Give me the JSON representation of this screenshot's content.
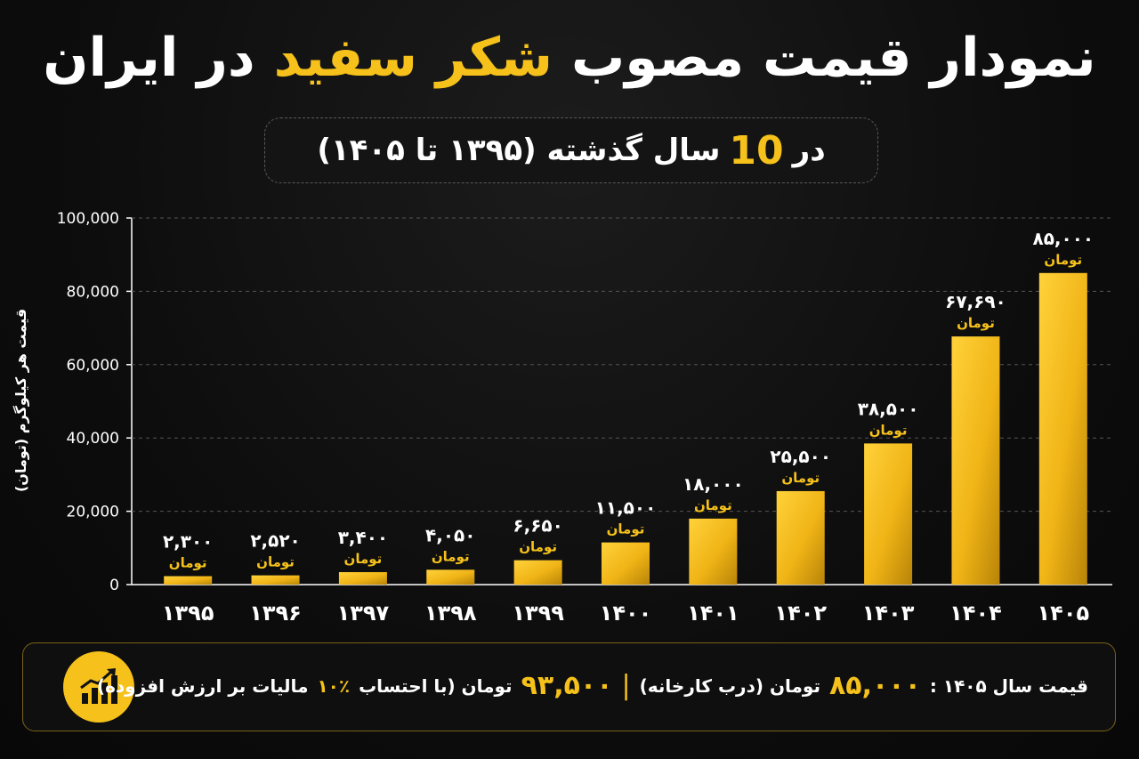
{
  "title": {
    "part1": "نمودار قیمت مصوب",
    "highlight": "شکر سفید",
    "part2": "در ایران"
  },
  "subtitle": {
    "prefix": "در",
    "number": "10",
    "suffix": "سال گذشته (۱۳۹۵ تا ۱۴۰۵)"
  },
  "chart_data": {
    "type": "bar",
    "ylabel": "قیمت هر کیلوگرم (تومان)",
    "ylim": [
      0,
      100000
    ],
    "yticks": [
      "0",
      "20,000",
      "40,000",
      "60,000",
      "80,000",
      "100,000"
    ],
    "grid": true,
    "categories": [
      "۱۳۹۵",
      "۱۳۹۶",
      "۱۳۹۷",
      "۱۳۹۸",
      "۱۳۹۹",
      "۱۴۰۰",
      "۱۴۰۱",
      "۱۴۰۲",
      "۱۴۰۳",
      "۱۴۰۴",
      "۱۴۰۵"
    ],
    "values": [
      2300,
      2520,
      3400,
      4050,
      6650,
      11500,
      18000,
      25500,
      38500,
      67690,
      85000
    ],
    "value_labels": [
      "۲,۳۰۰",
      "۲,۵۲۰",
      "۳,۴۰۰",
      "۴,۰۵۰",
      "۶,۶۵۰",
      "۱۱,۵۰۰",
      "۱۸,۰۰۰",
      "۲۵,۵۰۰",
      "۳۸,۵۰۰",
      "۶۷,۶۹۰",
      "۸۵,۰۰۰"
    ],
    "unit_label": "تومان",
    "bar_color": "#f5c11a"
  },
  "footer": {
    "icon": "growth-chart-icon",
    "year_label": "قیمت سال ۱۴۰۵ :",
    "factory_price": "۸۵,۰۰۰",
    "factory_text": "تومان (درب کارخانه)",
    "separator": "|",
    "tax_price": "۹۳,۵۰۰",
    "tax_text_1": "تومان (با احتساب",
    "tax_pct": "۱۰٪",
    "tax_text_2": "مالیات بر ارزش افزوده)"
  }
}
